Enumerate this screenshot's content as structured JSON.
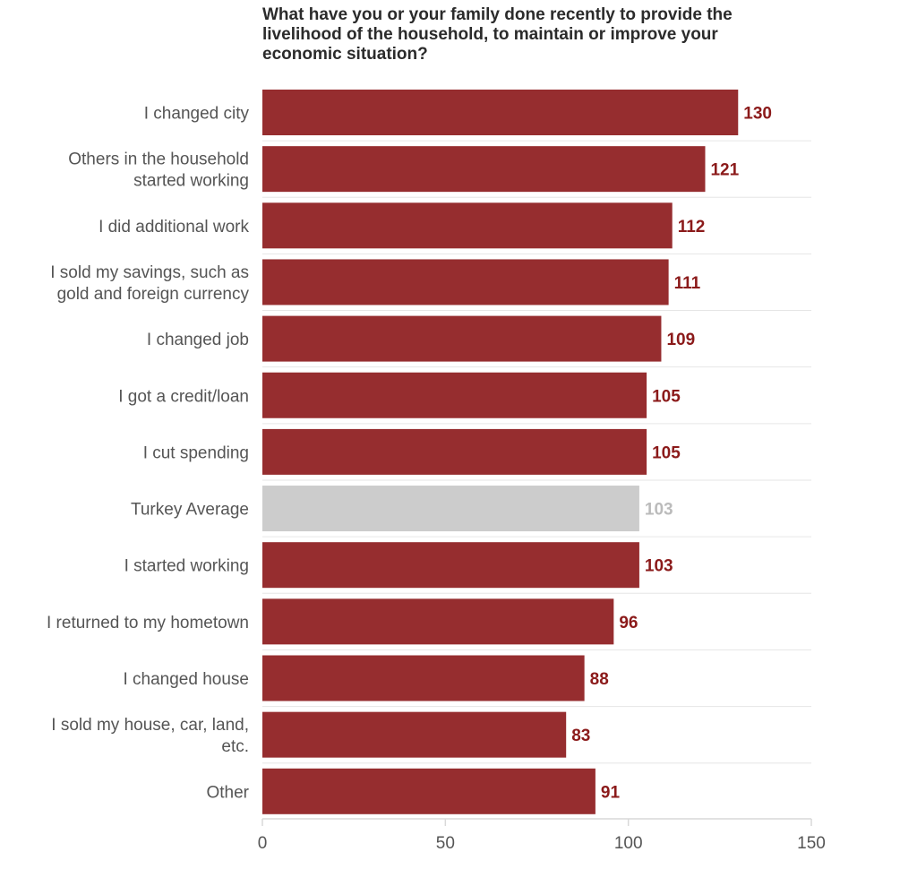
{
  "chart_data": {
    "type": "bar",
    "orientation": "horizontal",
    "title": "What have you or your family done recently to provide the livelihood of the household, to maintain or improve your economic situation?",
    "xlabel": "",
    "ylabel": "",
    "xlim": [
      0,
      150
    ],
    "xticks": [
      0,
      50,
      100,
      150
    ],
    "grid": false,
    "legend": "none",
    "categories": [
      "I changed city",
      "Others in the household started working",
      "I did additional work",
      "I sold my savings, such as gold and foreign currency",
      "I changed job",
      "I got a credit/loan",
      "I cut spending",
      "Turkey Average",
      "I started working",
      "I returned to my hometown",
      "I changed house",
      "I sold my house, car, land, etc.",
      "Other"
    ],
    "category_lines": [
      [
        "I changed city"
      ],
      [
        "Others in the household",
        "started working"
      ],
      [
        "I did additional work"
      ],
      [
        "I sold my savings, such as",
        "gold and foreign currency"
      ],
      [
        "I changed job"
      ],
      [
        "I got a credit/loan"
      ],
      [
        "I cut spending"
      ],
      [
        "Turkey Average"
      ],
      [
        "I started working"
      ],
      [
        "I returned to my hometown"
      ],
      [
        "I changed house"
      ],
      [
        "I sold my house, car, land,",
        "etc."
      ],
      [
        "Other"
      ]
    ],
    "values": [
      130,
      121,
      112,
      111,
      109,
      105,
      105,
      103,
      103,
      96,
      88,
      83,
      91
    ],
    "highlight_index": 7,
    "colors": {
      "bar": "#962d2f",
      "bar_label": "#8b1a1a",
      "highlight_bar": "#cccccc",
      "highlight_label": "#bbbbbb",
      "axis": "#d9d9d9",
      "separator": "#e6e6e6"
    }
  }
}
